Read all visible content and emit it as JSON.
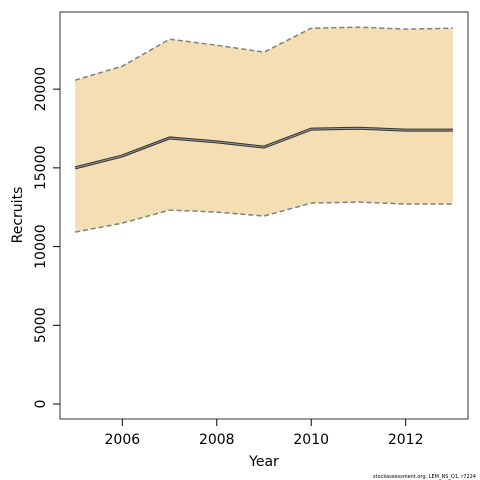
{
  "chart_data": {
    "type": "line",
    "xlabel": "Year",
    "ylabel": "Recruits",
    "annotation": "stockassessment.org, LEM_NS_Q1, r7224",
    "x": [
      2005,
      2006,
      2007,
      2008,
      2009,
      2010,
      2011,
      2012,
      2013
    ],
    "values": [
      15000,
      15760,
      16900,
      16650,
      16320,
      17460,
      17520,
      17400,
      17400
    ],
    "upper": [
      20570,
      21460,
      23170,
      22790,
      22350,
      23870,
      23940,
      23810,
      23870
    ],
    "lower": [
      10920,
      11490,
      12320,
      12190,
      11940,
      12760,
      12830,
      12700,
      12700
    ],
    "color": "#333333",
    "band_color": "#f5deb3",
    "bound_color": "#808080",
    "xlim": [
      2004.68,
      2013.32
    ],
    "ylim": [
      -950,
      24900
    ],
    "xticks": [
      2006,
      2008,
      2010,
      2012
    ],
    "yticks": [
      0,
      5000,
      10000,
      15000,
      20000
    ]
  }
}
